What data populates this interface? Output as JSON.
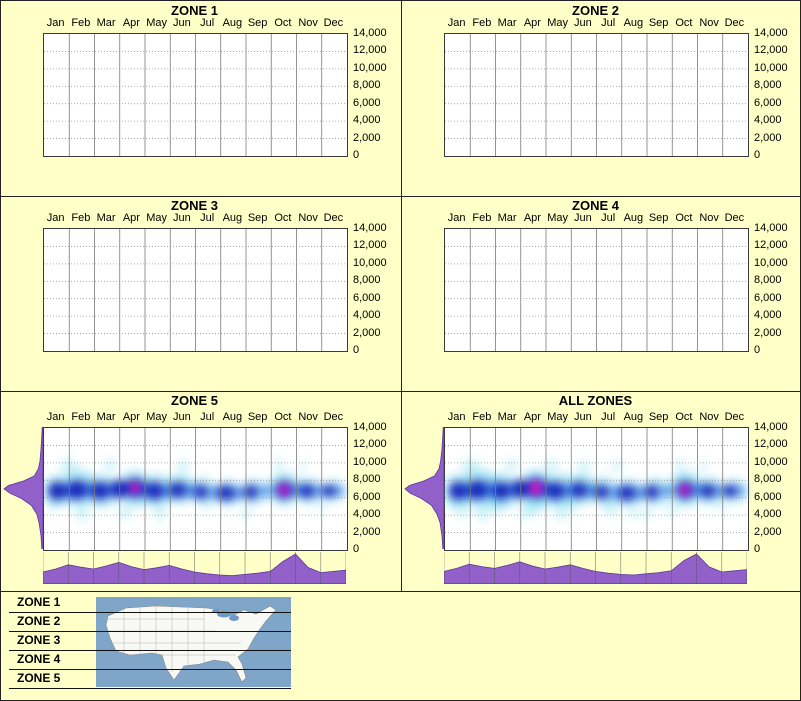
{
  "page": {
    "background": "#FFFFC8"
  },
  "months": [
    "Jan",
    "Feb",
    "Mar",
    "Apr",
    "May",
    "Jun",
    "Jul",
    "Aug",
    "Sep",
    "Oct",
    "Nov",
    "Dec"
  ],
  "y_ticks": [
    "14,000",
    "12,000",
    "10,000",
    "8,000",
    "6,000",
    "4,000",
    "2,000",
    "0"
  ],
  "palette": [
    "#9FE8F2",
    "#4FC8E8",
    "#2D6FE0",
    "#101AB4",
    "#050566",
    "#E816C8"
  ],
  "marginal_color": "#9161C9",
  "marginal_stroke": "#5E35A0",
  "legend": {
    "items": [
      "ZONE 1",
      "ZONE 2",
      "ZONE 3",
      "ZONE 4",
      "ZONE 5"
    ]
  },
  "chart_data": [
    {
      "type": "heatmap",
      "title": "ZONE 1",
      "ylim": [
        0,
        14000
      ],
      "y_tick_values": [
        14000,
        12000,
        10000,
        8000,
        6000,
        4000,
        2000,
        0
      ],
      "points": []
    },
    {
      "type": "heatmap",
      "title": "ZONE 2",
      "ylim": [
        0,
        14000
      ],
      "y_tick_values": [
        14000,
        12000,
        10000,
        8000,
        6000,
        4000,
        2000,
        0
      ],
      "points": []
    },
    {
      "type": "heatmap",
      "title": "ZONE 3",
      "ylim": [
        0,
        14000
      ],
      "y_tick_values": [
        14000,
        12000,
        10000,
        8000,
        6000,
        4000,
        2000,
        0
      ],
      "points": []
    },
    {
      "type": "heatmap",
      "title": "ZONE 4",
      "ylim": [
        0,
        14000
      ],
      "y_tick_values": [
        14000,
        12000,
        10000,
        8000,
        6000,
        4000,
        2000,
        0
      ],
      "points": []
    },
    {
      "type": "heatmap",
      "title": "ZONE 5",
      "ylim": [
        0,
        14000
      ],
      "y_tick_values": [
        14000,
        12000,
        10000,
        8000,
        6000,
        4000,
        2000,
        0
      ],
      "points": [
        [
          1.0,
          9600,
          11,
          0,
          0.45
        ],
        [
          2.6,
          9800,
          9,
          0,
          0.4
        ],
        [
          5.5,
          9600,
          9,
          0,
          0.4
        ],
        [
          9.3,
          9900,
          8,
          0,
          0.35
        ],
        [
          1.5,
          4200,
          10,
          0,
          0.45
        ],
        [
          3.2,
          4300,
          9,
          0,
          0.4
        ],
        [
          4.6,
          4100,
          9,
          0,
          0.4
        ],
        [
          8.0,
          4300,
          8,
          0,
          0.35
        ],
        [
          6.5,
          5000,
          8,
          0,
          0.3
        ],
        [
          11.0,
          5100,
          8,
          0,
          0.3
        ],
        [
          0.4,
          5300,
          8,
          0,
          0.3
        ],
        [
          10.2,
          9500,
          7,
          0,
          0.3
        ],
        [
          0.5,
          6800,
          20,
          1,
          0.5
        ],
        [
          1.4,
          7100,
          23,
          1,
          0.55
        ],
        [
          2.3,
          6800,
          21,
          1,
          0.5
        ],
        [
          3.6,
          7000,
          23,
          1,
          0.55
        ],
        [
          4.5,
          6800,
          21,
          1,
          0.5
        ],
        [
          5.4,
          7000,
          19,
          1,
          0.5
        ],
        [
          6.3,
          6800,
          17,
          1,
          0.45
        ],
        [
          7.3,
          6500,
          17,
          1,
          0.45
        ],
        [
          8.3,
          6700,
          17,
          1,
          0.45
        ],
        [
          9.5,
          7000,
          21,
          1,
          0.55
        ],
        [
          10.5,
          6800,
          17,
          1,
          0.45
        ],
        [
          11.5,
          6800,
          15,
          1,
          0.4
        ],
        [
          0.9,
          6800,
          11,
          2,
          0.65
        ],
        [
          1.8,
          6900,
          11,
          2,
          0.65
        ],
        [
          2.7,
          6900,
          11,
          2,
          0.65
        ],
        [
          4.0,
          6900,
          11,
          2,
          0.65
        ],
        [
          4.9,
          6800,
          10,
          2,
          0.6
        ],
        [
          5.8,
          6800,
          10,
          2,
          0.6
        ],
        [
          6.8,
          6600,
          10,
          2,
          0.6
        ],
        [
          7.7,
          6600,
          10,
          2,
          0.6
        ],
        [
          8.8,
          6800,
          9,
          2,
          0.55
        ],
        [
          10.0,
          6900,
          10,
          2,
          0.6
        ],
        [
          10.9,
          6800,
          9,
          2,
          0.55
        ],
        [
          11.7,
          6800,
          8,
          2,
          0.5
        ],
        [
          0.5,
          6800,
          12,
          3,
          0.9
        ],
        [
          1.3,
          6900,
          13,
          3,
          0.9
        ],
        [
          2.2,
          6800,
          12,
          3,
          0.9
        ],
        [
          3.0,
          7000,
          12,
          3,
          0.9
        ],
        [
          3.6,
          7100,
          13,
          3,
          0.92
        ],
        [
          4.4,
          6800,
          12,
          3,
          0.88
        ],
        [
          5.3,
          6900,
          11,
          3,
          0.85
        ],
        [
          6.2,
          6700,
          10,
          3,
          0.8
        ],
        [
          7.2,
          6500,
          11,
          3,
          0.85
        ],
        [
          8.2,
          6700,
          10,
          3,
          0.8
        ],
        [
          9.5,
          6900,
          12,
          3,
          0.92
        ],
        [
          10.4,
          6800,
          10,
          3,
          0.82
        ],
        [
          11.3,
          6800,
          9,
          3,
          0.8
        ],
        [
          3.6,
          7100,
          7,
          5,
          0.95
        ],
        [
          9.5,
          6900,
          7,
          5,
          0.95
        ]
      ],
      "elevation_profile": [
        [
          0,
          0.03
        ],
        [
          1500,
          0.05
        ],
        [
          3000,
          0.1
        ],
        [
          4000,
          0.16
        ],
        [
          5000,
          0.3
        ],
        [
          5800,
          0.55
        ],
        [
          6400,
          0.85
        ],
        [
          6900,
          1.0
        ],
        [
          7300,
          0.88
        ],
        [
          7800,
          0.5
        ],
        [
          8400,
          0.22
        ],
        [
          9200,
          0.12
        ],
        [
          10000,
          0.08
        ],
        [
          11500,
          0.05
        ],
        [
          13000,
          0.03
        ],
        [
          14000,
          0.02
        ]
      ],
      "monthly_profile": [
        0.4,
        0.5,
        0.64,
        0.56,
        0.5,
        0.6,
        0.72,
        0.58,
        0.48,
        0.54,
        0.62,
        0.5,
        0.4,
        0.34,
        0.3,
        0.28,
        0.32,
        0.36,
        0.42,
        0.75,
        1.0,
        0.55,
        0.38,
        0.42,
        0.46
      ]
    },
    {
      "type": "heatmap",
      "title": "ALL ZONES",
      "ylim": [
        0,
        14000
      ],
      "y_tick_values": [
        14000,
        12000,
        10000,
        8000,
        6000,
        4000,
        2000,
        0
      ],
      "points": [
        [
          1.0,
          9600,
          11,
          0,
          0.45
        ],
        [
          2.6,
          9800,
          9,
          0,
          0.4
        ],
        [
          5.5,
          9600,
          9,
          0,
          0.4
        ],
        [
          9.3,
          9900,
          8,
          0,
          0.35
        ],
        [
          1.5,
          4200,
          10,
          0,
          0.45
        ],
        [
          3.2,
          4300,
          9,
          0,
          0.4
        ],
        [
          4.6,
          4100,
          9,
          0,
          0.4
        ],
        [
          8.0,
          4300,
          8,
          0,
          0.35
        ],
        [
          6.5,
          5000,
          8,
          0,
          0.3
        ],
        [
          11.0,
          5100,
          8,
          0,
          0.3
        ],
        [
          0.4,
          5300,
          8,
          0,
          0.3
        ],
        [
          10.2,
          9500,
          7,
          0,
          0.3
        ],
        [
          2.0,
          5300,
          13,
          0,
          0.4
        ],
        [
          3.5,
          5100,
          13,
          0,
          0.4
        ],
        [
          5.0,
          5200,
          11,
          0,
          0.35
        ],
        [
          6.6,
          4800,
          11,
          0,
          0.35
        ],
        [
          4.2,
          9800,
          10,
          0,
          0.35
        ],
        [
          6.8,
          9700,
          9,
          0,
          0.3
        ],
        [
          0.7,
          4500,
          10,
          0,
          0.35
        ],
        [
          9.0,
          4700,
          10,
          0,
          0.3
        ],
        [
          7.5,
          4200,
          9,
          0,
          0.3
        ],
        [
          0.5,
          6800,
          21,
          1,
          0.52
        ],
        [
          1.4,
          7100,
          24,
          1,
          0.57
        ],
        [
          2.3,
          6800,
          22,
          1,
          0.52
        ],
        [
          3.6,
          7000,
          24,
          1,
          0.57
        ],
        [
          4.5,
          6800,
          22,
          1,
          0.52
        ],
        [
          5.4,
          7000,
          20,
          1,
          0.52
        ],
        [
          6.3,
          6800,
          18,
          1,
          0.47
        ],
        [
          7.3,
          6500,
          18,
          1,
          0.47
        ],
        [
          8.3,
          6700,
          18,
          1,
          0.47
        ],
        [
          9.5,
          7000,
          22,
          1,
          0.57
        ],
        [
          10.5,
          6800,
          18,
          1,
          0.47
        ],
        [
          11.5,
          6800,
          16,
          1,
          0.42
        ],
        [
          0.9,
          6800,
          11,
          2,
          0.65
        ],
        [
          1.8,
          6900,
          11,
          2,
          0.65
        ],
        [
          2.7,
          6900,
          11,
          2,
          0.65
        ],
        [
          4.0,
          6900,
          11,
          2,
          0.65
        ],
        [
          4.9,
          6800,
          10,
          2,
          0.6
        ],
        [
          5.8,
          6800,
          10,
          2,
          0.6
        ],
        [
          6.8,
          6600,
          10,
          2,
          0.6
        ],
        [
          7.7,
          6600,
          10,
          2,
          0.6
        ],
        [
          8.8,
          6800,
          9,
          2,
          0.55
        ],
        [
          10.0,
          6900,
          10,
          2,
          0.6
        ],
        [
          10.9,
          6800,
          9,
          2,
          0.55
        ],
        [
          11.7,
          6800,
          8,
          2,
          0.5
        ],
        [
          0.5,
          6800,
          12,
          3,
          0.9
        ],
        [
          1.3,
          6900,
          13,
          3,
          0.9
        ],
        [
          2.2,
          6800,
          12,
          3,
          0.9
        ],
        [
          3.0,
          7000,
          12,
          3,
          0.9
        ],
        [
          3.6,
          7100,
          14,
          3,
          0.92
        ],
        [
          4.4,
          6800,
          12,
          3,
          0.88
        ],
        [
          5.3,
          6900,
          11,
          3,
          0.85
        ],
        [
          6.2,
          6700,
          10,
          3,
          0.8
        ],
        [
          7.2,
          6500,
          11,
          3,
          0.85
        ],
        [
          8.2,
          6700,
          10,
          3,
          0.8
        ],
        [
          9.5,
          6900,
          12,
          3,
          0.92
        ],
        [
          10.4,
          6800,
          10,
          3,
          0.82
        ],
        [
          11.3,
          6800,
          9,
          3,
          0.8
        ],
        [
          3.6,
          7100,
          9,
          5,
          0.95
        ],
        [
          9.5,
          6900,
          7,
          5,
          0.95
        ]
      ],
      "elevation_profile": [
        [
          0,
          0.03
        ],
        [
          1500,
          0.05
        ],
        [
          3000,
          0.1
        ],
        [
          4000,
          0.18
        ],
        [
          5000,
          0.32
        ],
        [
          5800,
          0.58
        ],
        [
          6400,
          0.87
        ],
        [
          6900,
          1.0
        ],
        [
          7300,
          0.88
        ],
        [
          7800,
          0.52
        ],
        [
          8400,
          0.24
        ],
        [
          9200,
          0.13
        ],
        [
          10000,
          0.09
        ],
        [
          11500,
          0.05
        ],
        [
          13000,
          0.03
        ],
        [
          14000,
          0.02
        ]
      ],
      "monthly_profile": [
        0.42,
        0.52,
        0.66,
        0.58,
        0.52,
        0.62,
        0.74,
        0.6,
        0.5,
        0.56,
        0.64,
        0.52,
        0.42,
        0.36,
        0.32,
        0.3,
        0.34,
        0.38,
        0.44,
        0.78,
        1.0,
        0.57,
        0.4,
        0.44,
        0.48
      ]
    }
  ]
}
